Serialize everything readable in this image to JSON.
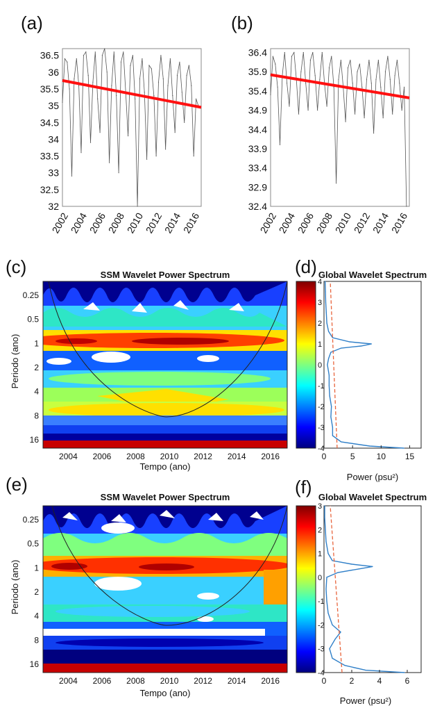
{
  "panel_labels": {
    "a": "(a)",
    "b": "(b)",
    "c": "(c)",
    "d": "(d)",
    "e": "(e)",
    "f": "(f)"
  },
  "chart_data": [
    {
      "panel": "a",
      "type": "line",
      "x": [
        2002.0,
        2002.25,
        2002.5,
        2002.75,
        2003.0,
        2003.25,
        2003.5,
        2003.75,
        2004.0,
        2004.25,
        2004.5,
        2004.75,
        2005.0,
        2005.25,
        2005.5,
        2005.75,
        2006.0,
        2006.25,
        2006.5,
        2006.75,
        2007.0,
        2007.25,
        2007.5,
        2007.75,
        2008.0,
        2008.25,
        2008.5,
        2008.75,
        2009.0,
        2009.25,
        2009.5,
        2009.75,
        2010.0,
        2010.25,
        2010.5,
        2010.75,
        2011.0,
        2011.25,
        2011.5,
        2011.75,
        2012.0,
        2012.25,
        2012.5,
        2012.75,
        2013.0,
        2013.25,
        2013.5,
        2013.75,
        2014.0,
        2014.25,
        2014.5,
        2014.75,
        2015.0,
        2015.25,
        2015.5,
        2015.75,
        2016.0,
        2016.25,
        2016.5
      ],
      "series": [
        {
          "values": [
            35.1,
            36.4,
            36.3,
            35.5,
            32.9,
            35.8,
            36.4,
            35.6,
            33.6,
            36.5,
            36.6,
            35.9,
            33.9,
            35.7,
            36.6,
            35.2,
            34.2,
            36.5,
            36.7,
            36.0,
            33.3,
            35.6,
            36.6,
            35.3,
            33.0,
            36.3,
            36.6,
            35.4,
            34.1,
            36.2,
            36.5,
            35.2,
            32.0,
            35.8,
            36.4,
            35.4,
            33.4,
            36.2,
            36.1,
            35.3,
            33.5,
            35.7,
            36.5,
            35.8,
            33.7,
            35.6,
            36.4,
            35.3,
            34.2,
            35.9,
            36.3,
            35.4,
            34.5,
            35.9,
            36.2,
            35.6,
            33.5,
            35.2,
            35.0
          ]
        },
        {
          "trend": [
            35.75,
            34.95
          ]
        }
      ],
      "xticks": [
        "2002",
        "2004",
        "2006",
        "2008",
        "2010",
        "2012",
        "2014",
        "2016"
      ],
      "yticks": [
        "32",
        "32.5",
        "33",
        "33.5",
        "34",
        "34.5",
        "35",
        "35.5",
        "36",
        "36.5"
      ],
      "xlim": [
        2002,
        2016.8
      ],
      "ylim": [
        32,
        36.7
      ]
    },
    {
      "panel": "b",
      "type": "line",
      "x": [
        2002.0,
        2002.25,
        2002.5,
        2002.75,
        2003.0,
        2003.25,
        2003.5,
        2003.75,
        2004.0,
        2004.25,
        2004.5,
        2004.75,
        2005.0,
        2005.25,
        2005.5,
        2005.75,
        2006.0,
        2006.25,
        2006.5,
        2006.75,
        2007.0,
        2007.25,
        2007.5,
        2007.75,
        2008.0,
        2008.25,
        2008.5,
        2008.75,
        2009.0,
        2009.25,
        2009.5,
        2009.75,
        2010.0,
        2010.25,
        2010.5,
        2010.75,
        2011.0,
        2011.25,
        2011.5,
        2011.75,
        2012.0,
        2012.25,
        2012.5,
        2012.75,
        2013.0,
        2013.25,
        2013.5,
        2013.75,
        2014.0,
        2014.25,
        2014.5,
        2014.75,
        2015.0,
        2015.25,
        2015.5,
        2015.75,
        2016.0,
        2016.25,
        2016.5
      ],
      "series": [
        {
          "values": [
            35.3,
            36.3,
            36.1,
            35.5,
            34.0,
            35.8,
            36.4,
            35.6,
            35.0,
            36.3,
            36.4,
            35.7,
            34.8,
            35.9,
            36.4,
            35.6,
            34.9,
            36.2,
            36.4,
            35.8,
            34.9,
            35.7,
            36.4,
            35.6,
            35.0,
            36.0,
            36.3,
            35.5,
            33.0,
            35.7,
            36.2,
            35.5,
            34.6,
            36.0,
            36.2,
            35.6,
            34.8,
            35.9,
            36.1,
            35.5,
            34.7,
            35.7,
            36.2,
            35.6,
            34.3,
            35.7,
            36.2,
            35.5,
            34.7,
            35.9,
            36.3,
            35.7,
            34.8,
            35.8,
            36.2,
            35.6,
            34.9,
            35.5,
            32.4
          ]
        },
        {
          "trend": [
            35.82,
            35.22
          ]
        }
      ],
      "xticks": [
        "2002",
        "2004",
        "2006",
        "2008",
        "2010",
        "2012",
        "2014",
        "2016"
      ],
      "yticks": [
        "32.4",
        "32.9",
        "33.4",
        "33.9",
        "34.4",
        "34.9",
        "35.4",
        "35.9",
        "36.4"
      ],
      "xlim": [
        2002,
        2016.8
      ],
      "ylim": [
        32.4,
        36.5
      ]
    },
    {
      "panel": "c",
      "type": "heatmap",
      "title": "SSM Wavelet Power Spectrum",
      "xlabel": "Tempo (ano)",
      "ylabel": "Periodo (ano)",
      "xticks": [
        "2004",
        "2006",
        "2008",
        "2010",
        "2012",
        "2014",
        "2016"
      ],
      "yticks": [
        "0.25",
        "0.5",
        "1",
        "2",
        "4",
        "8",
        "16"
      ],
      "xlim": [
        2002.5,
        2017
      ],
      "colorbar_ticks": [
        "-4",
        "-3",
        "-2",
        "-1",
        "0",
        "1",
        "2",
        "3",
        "4"
      ],
      "colorbar_range": [
        -4,
        4
      ]
    },
    {
      "panel": "d",
      "type": "line",
      "title": "Global Wavelet Spectrum",
      "xlabel": "Power (psu²)",
      "xticks": [
        "0",
        "5",
        "10",
        "15"
      ],
      "xlim": [
        0,
        17
      ],
      "yticks": [
        "-4",
        "-3",
        "-2",
        "-1",
        "0",
        "1",
        "2",
        "3",
        "4"
      ],
      "ylim": [
        -4,
        4
      ],
      "series": [
        {
          "y": [
            -4.0,
            -3.9,
            -3.7,
            -3.4,
            -3.0,
            -2.5,
            -2.0,
            -1.5,
            -1.0,
            -0.5,
            0.0,
            0.3,
            0.6,
            0.8,
            0.9,
            1.0,
            1.1,
            1.3,
            1.6,
            2.0,
            2.5,
            3.0,
            3.5,
            4.0
          ],
          "power": [
            14.0,
            8.0,
            3.0,
            1.5,
            1.5,
            1.2,
            1.3,
            1.0,
            0.9,
            0.9,
            0.6,
            0.8,
            1.2,
            3.0,
            6.5,
            8.3,
            4.5,
            1.5,
            0.8,
            0.5,
            0.4,
            0.3,
            0.25,
            0.2
          ]
        },
        {
          "significance_x": [
            2.3,
            1.1
          ]
        }
      ]
    },
    {
      "panel": "e",
      "type": "heatmap",
      "title": "SSM Wavelet Power Spectrum",
      "xlabel": "Tempo (ano)",
      "ylabel": "Periodo (ano)",
      "xticks": [
        "2004",
        "2006",
        "2008",
        "2010",
        "2012",
        "2014",
        "2016"
      ],
      "yticks": [
        "0.25",
        "0.5",
        "1",
        "2",
        "4",
        "8",
        "16"
      ],
      "xlim": [
        2002.5,
        2017
      ],
      "colorbar_ticks": [
        "-4",
        "-3",
        "-2",
        "-1",
        "0",
        "1",
        "2",
        "3"
      ],
      "colorbar_range": [
        -4,
        3
      ]
    },
    {
      "panel": "f",
      "type": "line",
      "title": "Global Wavelet Spectrum",
      "xlabel": "Power (psu²)",
      "xticks": [
        "0",
        "2",
        "4",
        "6"
      ],
      "xlim": [
        0,
        7
      ],
      "yticks": [
        "-4",
        "-3",
        "-2",
        "-1",
        "0",
        "1",
        "2",
        "3"
      ],
      "ylim": [
        -4,
        3
      ],
      "series": [
        {
          "y": [
            -4.0,
            -3.9,
            -3.7,
            -3.4,
            -3.0,
            -2.6,
            -2.3,
            -2.0,
            -1.5,
            -1.0,
            -0.5,
            0.0,
            0.2,
            0.35,
            0.45,
            0.55,
            0.7,
            1.0,
            1.5,
            2.0,
            2.5,
            3.0
          ],
          "power": [
            5.8,
            3.0,
            1.5,
            0.6,
            0.4,
            0.8,
            1.2,
            0.6,
            0.3,
            0.2,
            0.15,
            0.2,
            1.0,
            2.5,
            3.5,
            2.0,
            0.6,
            0.3,
            0.15,
            0.1,
            0.05,
            0.05
          ]
        },
        {
          "significance_x": [
            1.3,
            0.45
          ]
        }
      ]
    }
  ]
}
